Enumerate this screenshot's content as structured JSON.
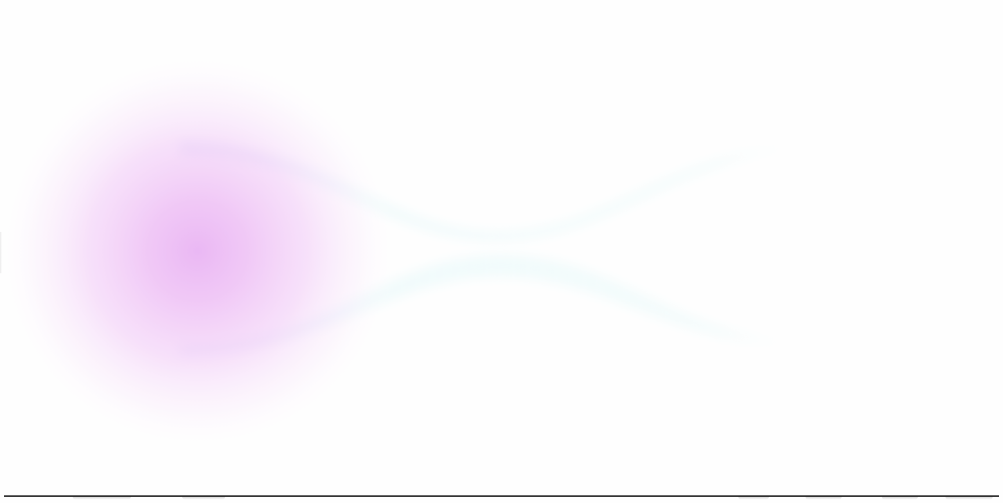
{
  "app": {
    "title": ""
  },
  "hero": {
    "icon": "glow-orb-with-light-rays",
    "glow_color": "#e6a6ef",
    "glow_core_color": "#ecb8f4",
    "ray_color": "#eefcfc"
  },
  "footer": {
    "nav_items": [
      {
        "label": ""
      },
      {
        "label": ""
      },
      {
        "label": ""
      },
      {
        "label": ""
      },
      {
        "label": ""
      },
      {
        "label": ""
      }
    ],
    "rule_color": "#1c1c1c"
  }
}
